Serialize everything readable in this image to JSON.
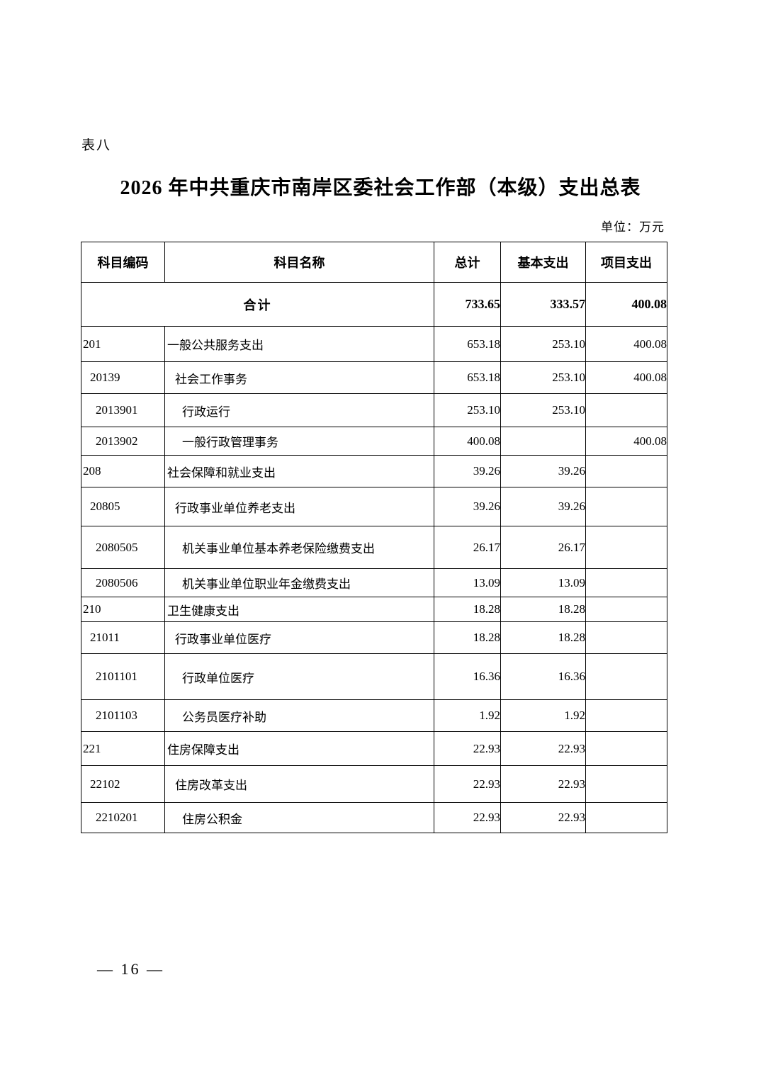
{
  "page": {
    "tag": "表八",
    "title": "2026 年中共重庆市南岸区委社会工作部（本级）支出总表",
    "unit_label": "单位：万元",
    "page_number": "— 16 —"
  },
  "table": {
    "headers": [
      "科目编码",
      "科目名称",
      "总计",
      "基本支出",
      "项目支出"
    ],
    "total_row": {
      "label": "合计",
      "total": "733.65",
      "basic": "333.57",
      "project": "400.08"
    },
    "rows": [
      {
        "code": "201",
        "name": "一般公共服务支出",
        "total": "653.18",
        "basic": "253.10",
        "project": "400.08",
        "level": 0
      },
      {
        "code": "20139",
        "name": "社会工作事务",
        "total": "653.18",
        "basic": "253.10",
        "project": "400.08",
        "level": 1
      },
      {
        "code": "2013901",
        "name": "行政运行",
        "total": "253.10",
        "basic": "253.10",
        "project": "",
        "level": 2
      },
      {
        "code": "2013902",
        "name": "一般行政管理事务",
        "total": "400.08",
        "basic": "",
        "project": "400.08",
        "level": 2
      },
      {
        "code": "208",
        "name": "社会保障和就业支出",
        "total": "39.26",
        "basic": "39.26",
        "project": "",
        "level": 0
      },
      {
        "code": "20805",
        "name": "行政事业单位养老支出",
        "total": "39.26",
        "basic": "39.26",
        "project": "",
        "level": 1
      },
      {
        "code": "2080505",
        "name": "机关事业单位基本养老保险缴费支出",
        "total": "26.17",
        "basic": "26.17",
        "project": "",
        "level": 2
      },
      {
        "code": "2080506",
        "name": "机关事业单位职业年金缴费支出",
        "total": "13.09",
        "basic": "13.09",
        "project": "",
        "level": 2
      },
      {
        "code": "210",
        "name": "卫生健康支出",
        "total": "18.28",
        "basic": "18.28",
        "project": "",
        "level": 0
      },
      {
        "code": "21011",
        "name": "行政事业单位医疗",
        "total": "18.28",
        "basic": "18.28",
        "project": "",
        "level": 1
      },
      {
        "code": "2101101",
        "name": "行政单位医疗",
        "total": "16.36",
        "basic": "16.36",
        "project": "",
        "level": 2
      },
      {
        "code": "2101103",
        "name": "公务员医疗补助",
        "total": "1.92",
        "basic": "1.92",
        "project": "",
        "level": 2
      },
      {
        "code": "221",
        "name": "住房保障支出",
        "total": "22.93",
        "basic": "22.93",
        "project": "",
        "level": 0
      },
      {
        "code": "22102",
        "name": "住房改革支出",
        "total": "22.93",
        "basic": "22.93",
        "project": "",
        "level": 1
      },
      {
        "code": "2210201",
        "name": "住房公积金",
        "total": "22.93",
        "basic": "22.93",
        "project": "",
        "level": 2
      }
    ]
  }
}
